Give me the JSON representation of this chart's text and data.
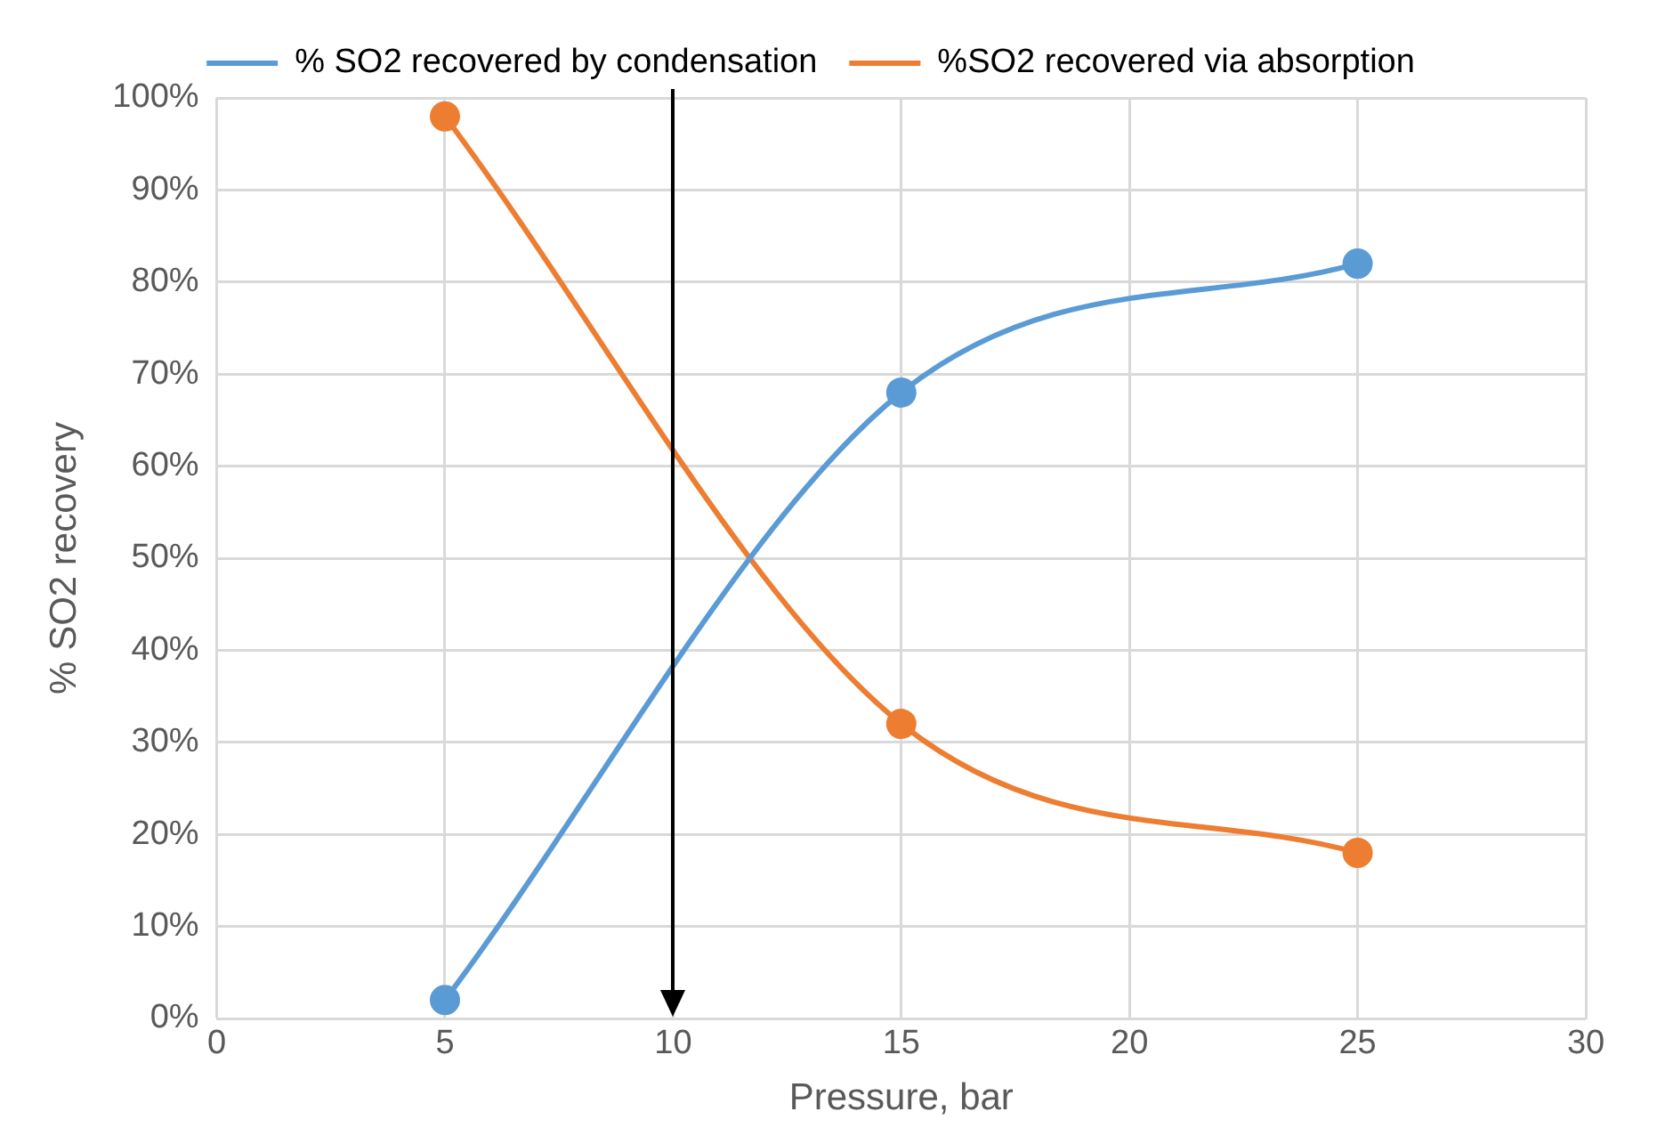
{
  "chart_data": {
    "type": "line",
    "xlabel": "Pressure, bar",
    "ylabel": "% SO2 recovery",
    "x": [
      5,
      15,
      25
    ],
    "series": [
      {
        "name": "% SO2 recovered by condensation",
        "color": "#5b9bd5",
        "values": [
          2,
          68,
          82
        ]
      },
      {
        "name": "%SO2 recovered via absorption",
        "color": "#ed7d31",
        "values": [
          98,
          32,
          18
        ]
      }
    ],
    "xlim": [
      0,
      30
    ],
    "xticks": [
      0,
      5,
      10,
      15,
      20,
      25,
      30
    ],
    "ylim": [
      0,
      100
    ],
    "yticks": [
      {
        "value": 0,
        "label": "0%"
      },
      {
        "value": 10,
        "label": "10%"
      },
      {
        "value": 20,
        "label": "20%"
      },
      {
        "value": 30,
        "label": "30%"
      },
      {
        "value": 40,
        "label": "40%"
      },
      {
        "value": 50,
        "label": "50%"
      },
      {
        "value": 60,
        "label": "60%"
      },
      {
        "value": 70,
        "label": "70%"
      },
      {
        "value": 80,
        "label": "80%"
      },
      {
        "value": 90,
        "label": "90%"
      },
      {
        "value": 100,
        "label": "100%"
      }
    ],
    "ref_lines": [
      {
        "axis": "x",
        "value": 10,
        "color": "#000000",
        "line_style": "solid"
      }
    ],
    "grid": true,
    "legend": "top",
    "marker": "circle",
    "line_style": "solid"
  }
}
